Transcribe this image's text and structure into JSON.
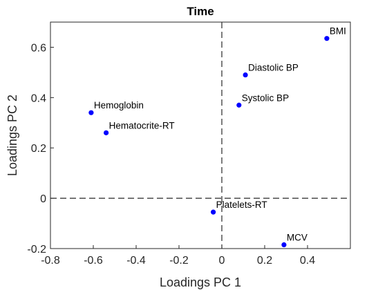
{
  "chart_data": {
    "type": "scatter",
    "title": "Time",
    "xlabel": "Loadings PC 1",
    "ylabel": "Loadings PC 2",
    "xlim": [
      -0.8,
      0.6
    ],
    "ylim": [
      -0.2,
      0.7
    ],
    "xticks": [
      -0.8,
      -0.6,
      -0.4,
      -0.2,
      0,
      0.2,
      0.4
    ],
    "xtick_labels": [
      "-0.8",
      "-0.6",
      "-0.4",
      "-0.2",
      "0",
      "0.2",
      "0.4"
    ],
    "yticks": [
      -0.2,
      0,
      0.2,
      0.4,
      0.6
    ],
    "ytick_labels": [
      "-0.2",
      "0",
      "0.2",
      "0.4",
      "0.6"
    ],
    "grid": false,
    "reference_lines": {
      "x": 0,
      "y": 0,
      "style": "dashed"
    },
    "marker_color": "#0000ff",
    "points": [
      {
        "label": "BMI",
        "x": 0.49,
        "y": 0.635
      },
      {
        "label": "Diastolic BP",
        "x": 0.11,
        "y": 0.49
      },
      {
        "label": "Systolic BP",
        "x": 0.08,
        "y": 0.37
      },
      {
        "label": "Hemoglobin",
        "x": -0.61,
        "y": 0.34
      },
      {
        "label": "Hematocrite-RT",
        "x": -0.54,
        "y": 0.26
      },
      {
        "label": "Platelets-RT",
        "x": -0.04,
        "y": -0.055
      },
      {
        "label": "MCV",
        "x": 0.29,
        "y": -0.185
      }
    ]
  }
}
